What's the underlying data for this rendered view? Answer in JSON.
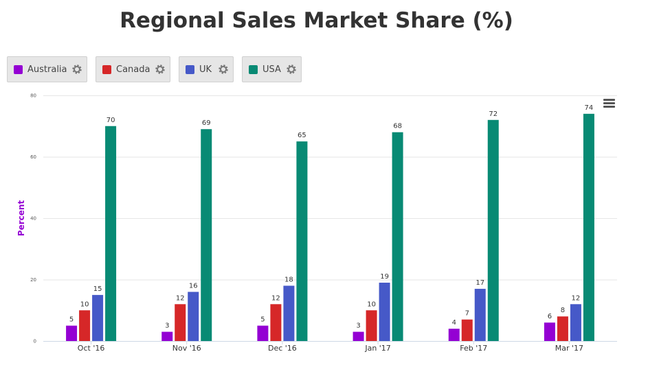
{
  "chart_data": {
    "type": "bar",
    "title": "Regional Sales Market Share (%)",
    "ylabel": "Percent",
    "xlabel": "",
    "categories": [
      "Oct '16",
      "Nov '16",
      "Dec '16",
      "Jan '17",
      "Feb '17",
      "Mar '17"
    ],
    "ylim": [
      0,
      80
    ],
    "yticks": [
      0,
      20,
      40,
      60,
      80
    ],
    "grid": true,
    "legend_position": "top-left",
    "series": [
      {
        "name": "Australia",
        "color": "#9400d3",
        "values": [
          5,
          3,
          5,
          3,
          4,
          6
        ]
      },
      {
        "name": "Canada",
        "color": "#d62728",
        "values": [
          10,
          12,
          12,
          10,
          7,
          8
        ]
      },
      {
        "name": "UK",
        "color": "#4659c8",
        "values": [
          15,
          16,
          18,
          19,
          17,
          12
        ]
      },
      {
        "name": "USA",
        "color": "#088a74",
        "values": [
          70,
          69,
          65,
          68,
          72,
          74
        ]
      }
    ]
  },
  "icons": {
    "legend_settings": "gear-icon",
    "chart_menu": "menu-icon"
  }
}
